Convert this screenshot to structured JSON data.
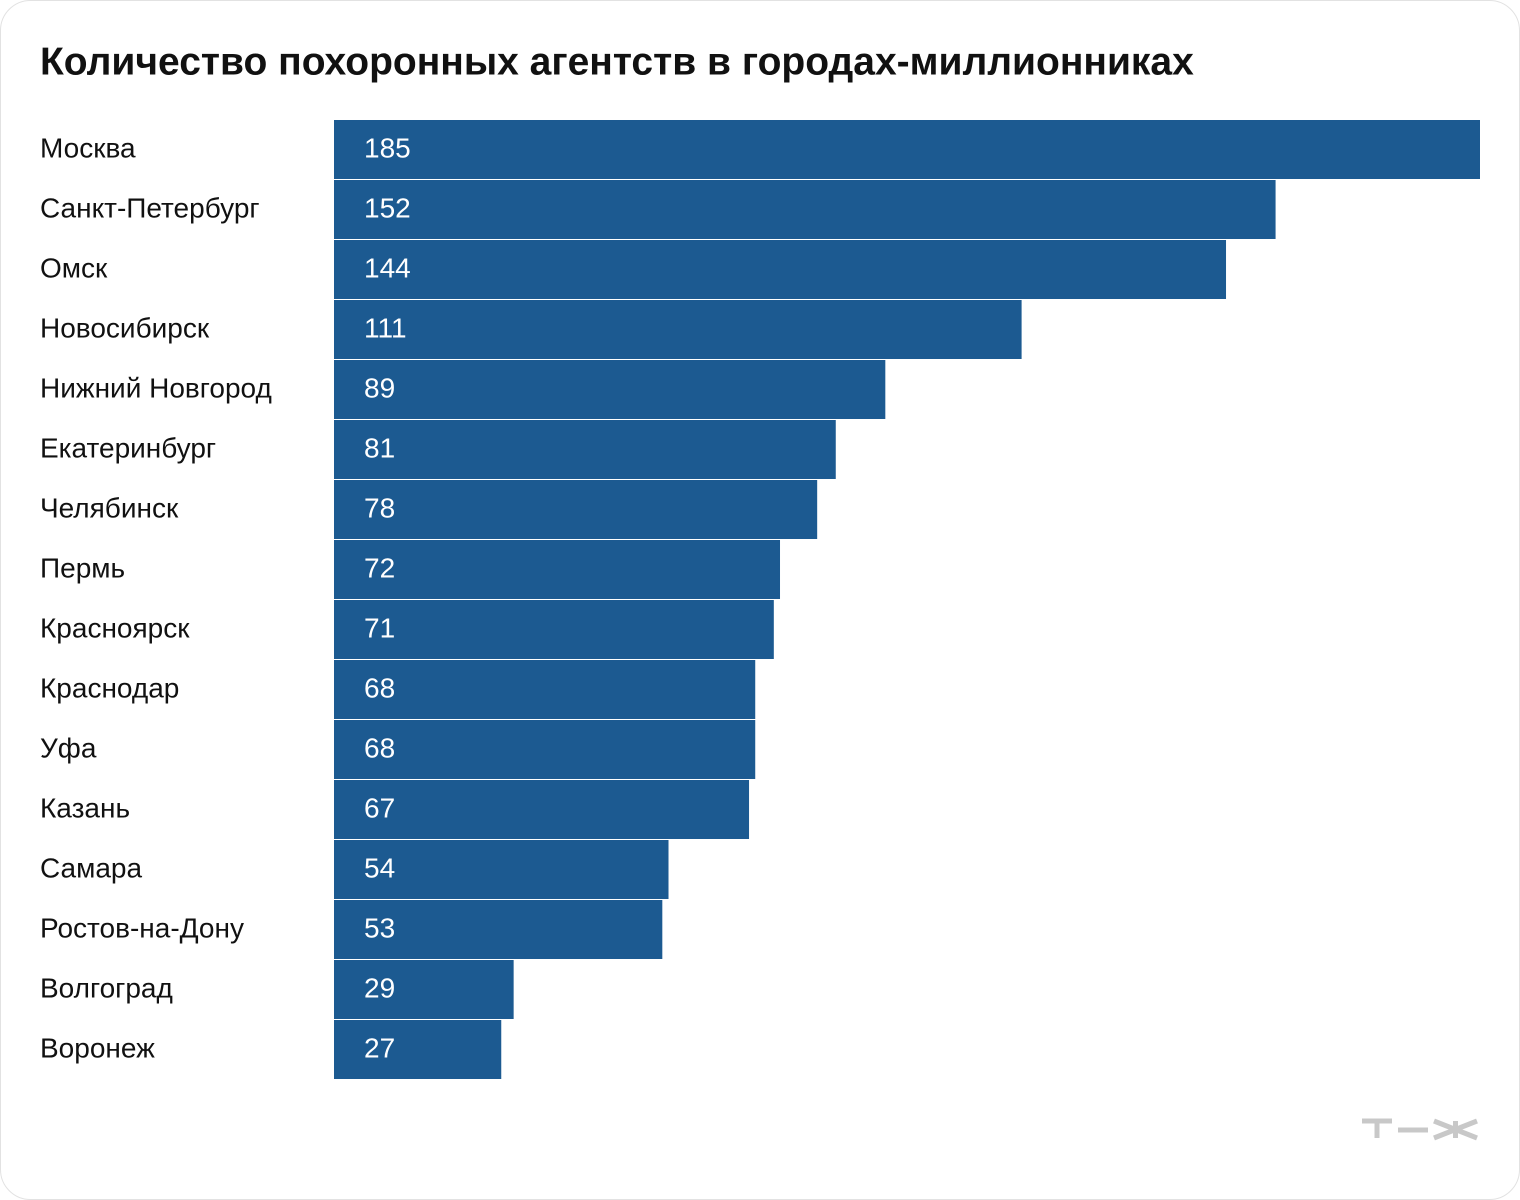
{
  "chart_data": {
    "type": "bar",
    "orientation": "horizontal",
    "title": "Количество похоронных агентств в городах-миллионниках",
    "categories": [
      "Москва",
      "Санкт-Петербург",
      "Омск",
      "Новосибирск",
      "Нижний Новгород",
      "Екатеринбург",
      "Челябинск",
      "Пермь",
      "Красноярск",
      "Краснодар",
      "Уфа",
      "Казань",
      "Самара",
      "Ростов-на-Дону",
      "Волгоград",
      "Воронеж"
    ],
    "values": [
      185,
      152,
      144,
      111,
      89,
      81,
      78,
      72,
      71,
      68,
      68,
      67,
      54,
      53,
      29,
      27
    ],
    "color": "#1c5a91"
  }
}
